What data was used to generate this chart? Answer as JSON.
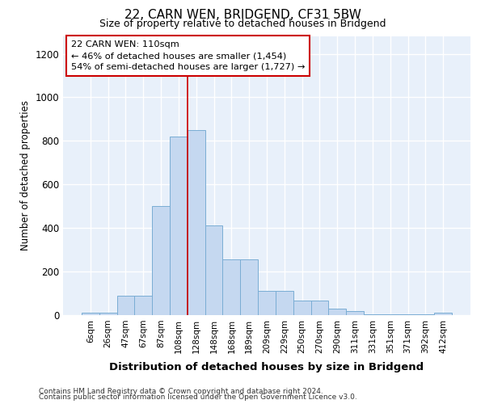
{
  "title": "22, CARN WEN, BRIDGEND, CF31 5BW",
  "subtitle": "Size of property relative to detached houses in Bridgend",
  "xlabel": "Distribution of detached houses by size in Bridgend",
  "ylabel": "Number of detached properties",
  "footnote1": "Contains HM Land Registry data © Crown copyright and database right 2024.",
  "footnote2": "Contains public sector information licensed under the Open Government Licence v3.0.",
  "bar_labels": [
    "6sqm",
    "26sqm",
    "47sqm",
    "67sqm",
    "87sqm",
    "108sqm",
    "128sqm",
    "148sqm",
    "168sqm",
    "189sqm",
    "209sqm",
    "229sqm",
    "250sqm",
    "270sqm",
    "290sqm",
    "311sqm",
    "331sqm",
    "351sqm",
    "371sqm",
    "392sqm",
    "412sqm"
  ],
  "bar_values": [
    10,
    10,
    90,
    90,
    500,
    820,
    850,
    410,
    255,
    255,
    110,
    110,
    65,
    65,
    30,
    20,
    5,
    5,
    5,
    5,
    10
  ],
  "bar_color": "#c5d8f0",
  "bar_edge_color": "#7aadd4",
  "background_color": "#e8f0fa",
  "grid_color": "#ffffff",
  "vline_x": 5.5,
  "vline_color": "#cc0000",
  "annotation_line1": "22 CARN WEN: 110sqm",
  "annotation_line2": "← 46% of detached houses are smaller (1,454)",
  "annotation_line3": "54% of semi-detached houses are larger (1,727) →",
  "annotation_box_color": "#ffffff",
  "annotation_box_edge": "#cc0000",
  "ylim": [
    0,
    1280
  ],
  "yticks": [
    0,
    200,
    400,
    600,
    800,
    1000,
    1200
  ],
  "fig_bg": "#ffffff"
}
